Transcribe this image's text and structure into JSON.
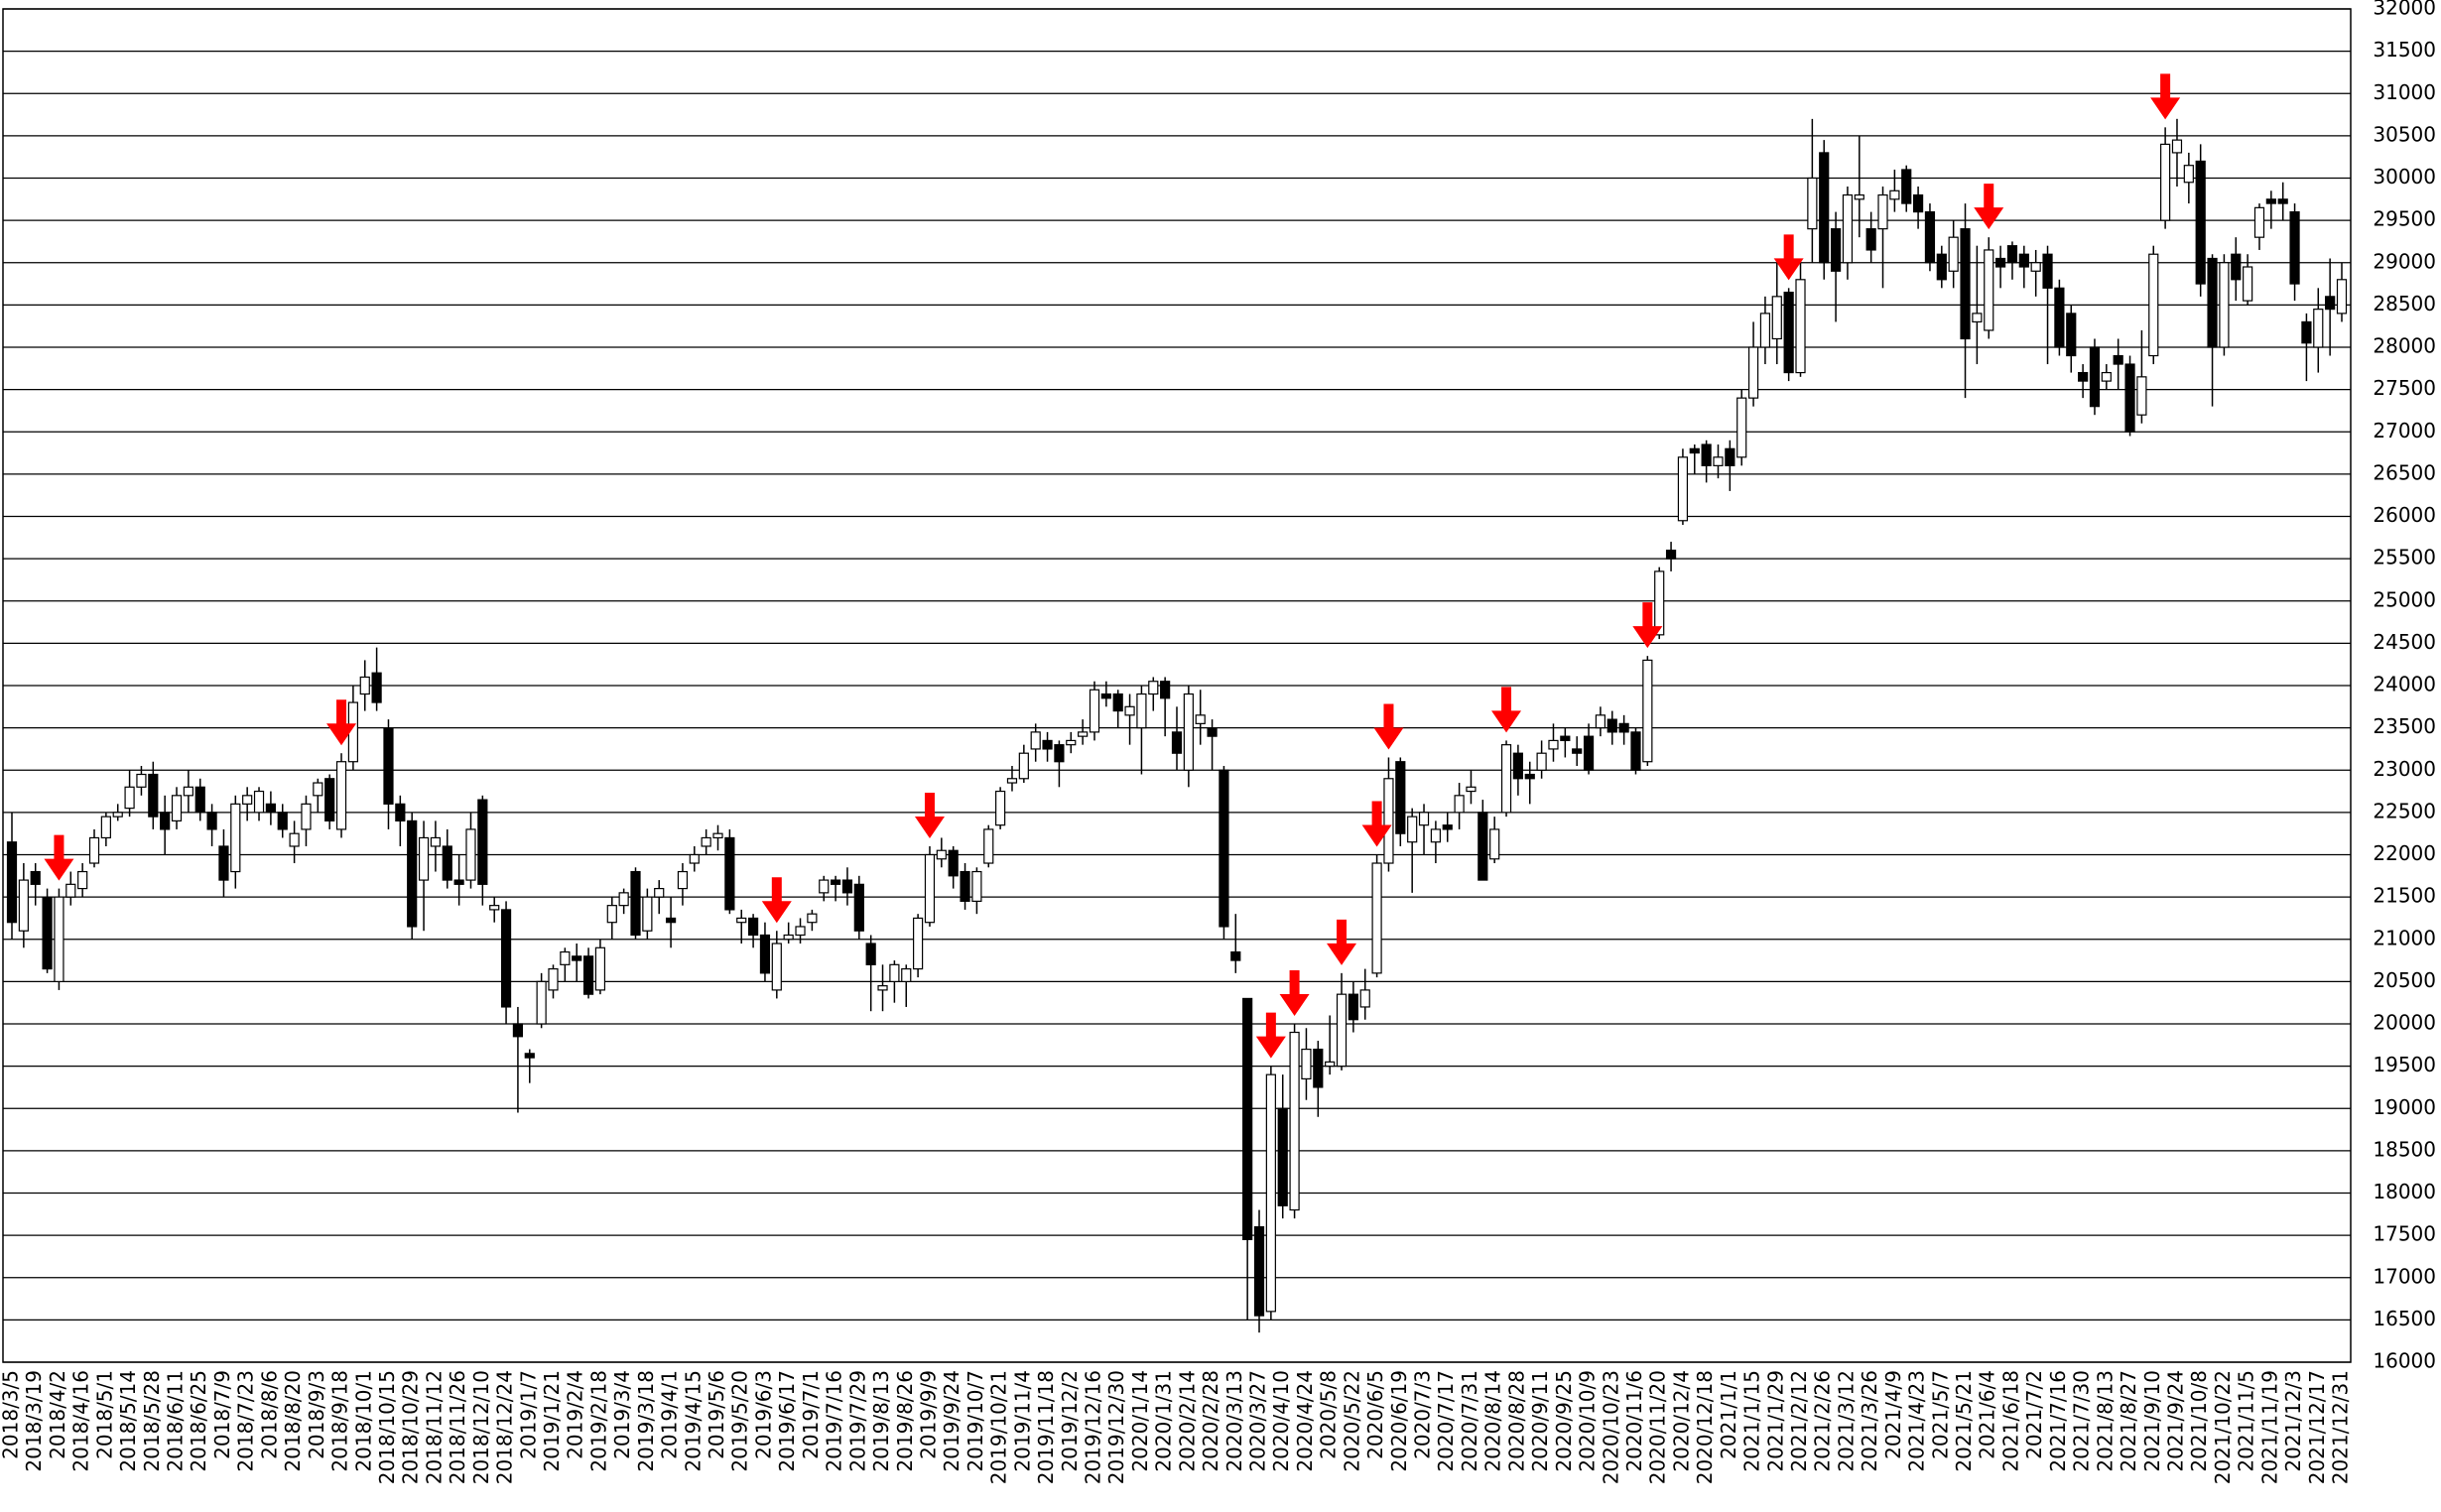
{
  "chart_data": {
    "type": "candlestick",
    "categories": [
      "2018/3/5",
      null,
      "2018/3/19",
      null,
      "2018/4/2",
      null,
      "2018/4/16",
      null,
      "2018/5/1",
      null,
      "2018/5/14",
      null,
      "2018/5/28",
      null,
      "2018/6/11",
      null,
      "2018/6/25",
      null,
      "2018/7/9",
      null,
      "2018/7/23",
      null,
      "2018/8/6",
      null,
      "2018/8/20",
      null,
      "2018/9/3",
      null,
      "2018/9/18",
      null,
      "2018/10/1",
      null,
      "2018/10/15",
      null,
      "2018/10/29",
      null,
      "2018/11/12",
      null,
      "2018/11/26",
      null,
      "2018/12/10",
      null,
      "2018/12/24",
      null,
      "2019/1/7",
      null,
      "2019/1/21",
      null,
      "2019/2/4",
      null,
      "2019/2/18",
      null,
      "2019/3/4",
      null,
      "2019/3/18",
      null,
      "2019/4/1",
      null,
      "2019/4/15",
      null,
      "2019/5/6",
      null,
      "2019/5/20",
      null,
      "2019/6/3",
      null,
      "2019/6/17",
      null,
      "2019/7/1",
      null,
      "2019/7/16",
      null,
      "2019/7/29",
      null,
      "2019/8/13",
      null,
      "2019/8/26",
      null,
      "2019/9/9",
      null,
      "2019/9/24",
      null,
      "2019/10/7",
      null,
      "2019/10/21",
      null,
      "2019/11/4",
      null,
      "2019/11/18",
      null,
      "2019/12/2",
      null,
      "2019/12/16",
      null,
      "2019/12/30",
      null,
      "2020/1/14",
      null,
      "2020/1/31",
      null,
      "2020/2/14",
      null,
      "2020/2/28",
      null,
      "2020/3/13",
      null,
      "2020/3/27",
      null,
      "2020/4/10",
      null,
      "2020/4/24",
      null,
      "2020/5/8",
      null,
      "2020/5/22",
      null,
      "2020/6/5",
      null,
      "2020/6/19",
      null,
      "2020/7/3",
      null,
      "2020/7/17",
      null,
      "2020/7/31",
      null,
      "2020/8/14",
      null,
      "2020/8/28",
      null,
      "2020/9/11",
      null,
      "2020/9/25",
      null,
      "2020/10/9",
      null,
      "2020/10/23",
      null,
      "2020/11/6",
      null,
      "2020/11/20",
      null,
      "2020/12/4",
      null,
      "2020/12/18",
      null,
      "2021/1/1",
      null,
      "2021/1/15",
      null,
      "2021/1/29",
      null,
      "2021/2/12",
      null,
      "2021/2/26",
      null,
      "2021/3/12",
      null,
      "2021/3/26",
      null,
      "2021/4/9",
      null,
      "2021/4/23",
      null,
      "2021/5/7",
      null,
      "2021/5/21",
      null,
      "2021/6/4",
      null,
      "2021/6/18",
      null,
      "2021/7/2",
      null,
      "2021/7/16",
      null,
      "2021/7/30",
      null,
      "2021/8/13",
      null,
      "2021/8/27",
      null,
      "2021/9/10",
      null,
      "2021/9/24",
      null,
      "2021/10/8",
      null,
      "2021/10/22",
      null,
      "2021/11/5",
      null,
      "2021/11/19",
      null,
      "2021/12/3",
      null,
      "2021/12/17",
      null,
      "2021/12/31"
    ],
    "candles": [
      [
        22150,
        22500,
        21000,
        21200
      ],
      [
        21100,
        21900,
        20900,
        21700
      ],
      [
        21800,
        21900,
        21400,
        21650
      ],
      [
        21500,
        21600,
        20600,
        20650
      ],
      [
        20500,
        21600,
        20400,
        21500
      ],
      [
        21500,
        21800,
        21400,
        21650
      ],
      [
        21600,
        21900,
        21500,
        21800
      ],
      [
        21900,
        22300,
        21850,
        22200
      ],
      [
        22200,
        22500,
        22100,
        22450
      ],
      [
        22450,
        22600,
        22400,
        22500
      ],
      [
        22550,
        23000,
        22450,
        22800
      ],
      [
        22800,
        23050,
        22700,
        22950
      ],
      [
        22950,
        23100,
        22300,
        22450
      ],
      [
        22500,
        22700,
        22000,
        22300
      ],
      [
        22400,
        22800,
        22300,
        22700
      ],
      [
        22700,
        23000,
        22500,
        22800
      ],
      [
        22800,
        22900,
        22400,
        22500
      ],
      [
        22500,
        22600,
        22100,
        22300
      ],
      [
        22100,
        22300,
        21500,
        21700
      ],
      [
        21800,
        22700,
        21600,
        22600
      ],
      [
        22600,
        22800,
        22400,
        22700
      ],
      [
        22500,
        22800,
        22400,
        22750
      ],
      [
        22600,
        22750,
        22350,
        22500
      ],
      [
        22500,
        22600,
        22200,
        22300
      ],
      [
        22100,
        22400,
        21900,
        22250
      ],
      [
        22300,
        22700,
        22100,
        22600
      ],
      [
        22700,
        22900,
        22500,
        22850
      ],
      [
        22900,
        22950,
        22300,
        22400
      ],
      [
        22300,
        23200,
        22200,
        23100
      ],
      [
        23100,
        24000,
        23000,
        23800
      ],
      [
        23900,
        24300,
        23700,
        24100
      ],
      [
        24150,
        24450,
        23700,
        23800
      ],
      [
        23500,
        23600,
        22300,
        22600
      ],
      [
        22600,
        22700,
        22100,
        22400
      ],
      [
        22400,
        22500,
        21000,
        21150
      ],
      [
        21700,
        22400,
        21100,
        22200
      ],
      [
        22100,
        22400,
        21800,
        22200
      ],
      [
        22100,
        22300,
        21600,
        21700
      ],
      [
        21700,
        22000,
        21400,
        21650
      ],
      [
        21700,
        22500,
        21600,
        22300
      ],
      [
        22650,
        22700,
        21400,
        21650
      ],
      [
        21350,
        21500,
        21200,
        21400
      ],
      [
        21350,
        21450,
        20000,
        20200
      ],
      [
        20000,
        20200,
        18950,
        19850
      ],
      [
        19650,
        19700,
        19300,
        19600
      ],
      [
        20000,
        20600,
        19950,
        20500
      ],
      [
        20400,
        20700,
        20300,
        20650
      ],
      [
        20700,
        20900,
        20500,
        20850
      ],
      [
        20800,
        20950,
        20500,
        20750
      ],
      [
        20800,
        20900,
        20300,
        20350
      ],
      [
        20400,
        21000,
        20350,
        20900
      ],
      [
        21200,
        21500,
        21000,
        21400
      ],
      [
        21400,
        21600,
        21300,
        21550
      ],
      [
        21800,
        21850,
        21000,
        21050
      ],
      [
        21100,
        21600,
        21000,
        21500
      ],
      [
        21500,
        21700,
        21300,
        21600
      ],
      [
        21250,
        21500,
        20900,
        21200
      ],
      [
        21600,
        21900,
        21400,
        21800
      ],
      [
        21900,
        22100,
        21800,
        22000
      ],
      [
        22100,
        22300,
        22000,
        22200
      ],
      [
        22200,
        22350,
        22050,
        22250
      ],
      [
        22200,
        22300,
        21300,
        21350
      ],
      [
        21200,
        21350,
        20950,
        21250
      ],
      [
        21250,
        21300,
        20900,
        21050
      ],
      [
        21050,
        21200,
        20500,
        20600
      ],
      [
        20400,
        21100,
        20300,
        20950
      ],
      [
        21000,
        21200,
        20950,
        21050
      ],
      [
        21050,
        21250,
        20950,
        21150
      ],
      [
        21200,
        21350,
        21100,
        21300
      ],
      [
        21550,
        21750,
        21450,
        21700
      ],
      [
        21700,
        21750,
        21450,
        21650
      ],
      [
        21700,
        21850,
        21400,
        21550
      ],
      [
        21650,
        21750,
        21000,
        21100
      ],
      [
        20950,
        21050,
        20150,
        20700
      ],
      [
        20400,
        20700,
        20150,
        20450
      ],
      [
        20500,
        20750,
        20250,
        20700
      ],
      [
        20500,
        20700,
        20200,
        20650
      ],
      [
        20650,
        21300,
        20550,
        21250
      ],
      [
        21200,
        22100,
        21150,
        22000
      ],
      [
        21950,
        22200,
        21850,
        22050
      ],
      [
        22050,
        22100,
        21600,
        21750
      ],
      [
        21800,
        21900,
        21350,
        21450
      ],
      [
        21450,
        21850,
        21300,
        21800
      ],
      [
        21900,
        22350,
        21850,
        22300
      ],
      [
        22350,
        22800,
        22300,
        22750
      ],
      [
        22850,
        23050,
        22750,
        22900
      ],
      [
        22900,
        23300,
        22850,
        23200
      ],
      [
        23250,
        23550,
        23100,
        23450
      ],
      [
        23350,
        23450,
        23100,
        23250
      ],
      [
        23300,
        23350,
        22800,
        23100
      ],
      [
        23300,
        23450,
        23200,
        23350
      ],
      [
        23400,
        23600,
        23300,
        23450
      ],
      [
        23450,
        24050,
        23350,
        23950
      ],
      [
        23900,
        24050,
        23750,
        23850
      ],
      [
        23900,
        23950,
        23500,
        23700
      ],
      [
        23650,
        23900,
        23300,
        23750
      ],
      [
        23500,
        24000,
        22950,
        23900
      ],
      [
        23900,
        24100,
        23700,
        24050
      ],
      [
        24050,
        24100,
        23400,
        23850
      ],
      [
        23450,
        23750,
        23000,
        23200
      ],
      [
        23000,
        24000,
        22800,
        23900
      ],
      [
        23550,
        23950,
        23300,
        23650
      ],
      [
        23500,
        23600,
        23000,
        23400
      ],
      [
        23000,
        23050,
        21000,
        21150
      ],
      [
        20850,
        21300,
        20600,
        20750
      ],
      [
        20300,
        20300,
        16500,
        17450
      ],
      [
        17600,
        17800,
        16350,
        16550
      ],
      [
        16600,
        19500,
        16500,
        19400
      ],
      [
        19000,
        19400,
        17700,
        17850
      ],
      [
        17800,
        20000,
        17700,
        19900
      ],
      [
        19350,
        19950,
        19100,
        19700
      ],
      [
        19700,
        19800,
        18900,
        19250
      ],
      [
        19500,
        20100,
        19400,
        19550
      ],
      [
        19500,
        20600,
        19450,
        20350
      ],
      [
        20350,
        20500,
        19900,
        20050
      ],
      [
        20200,
        20650,
        20050,
        20400
      ],
      [
        20600,
        22000,
        20550,
        21900
      ],
      [
        21900,
        23150,
        21800,
        22900
      ],
      [
        23100,
        23150,
        22100,
        22250
      ],
      [
        22150,
        22550,
        21550,
        22450
      ],
      [
        22350,
        22600,
        22000,
        22500
      ],
      [
        22150,
        22400,
        21900,
        22300
      ],
      [
        22350,
        22500,
        22150,
        22300
      ],
      [
        22500,
        22850,
        22300,
        22700
      ],
      [
        22750,
        23000,
        22600,
        22800
      ],
      [
        22500,
        22650,
        21700,
        21700
      ],
      [
        21950,
        22450,
        21900,
        22300
      ],
      [
        22500,
        23350,
        22450,
        23300
      ],
      [
        23200,
        23300,
        22700,
        22900
      ],
      [
        22950,
        23100,
        22600,
        22900
      ],
      [
        23000,
        23350,
        22900,
        23200
      ],
      [
        23250,
        23550,
        23100,
        23350
      ],
      [
        23400,
        23500,
        23150,
        23350
      ],
      [
        23250,
        23400,
        23050,
        23200
      ],
      [
        23400,
        23550,
        22950,
        23000
      ],
      [
        23500,
        23750,
        23400,
        23650
      ],
      [
        23600,
        23700,
        23300,
        23450
      ],
      [
        23550,
        23650,
        23300,
        23450
      ],
      [
        23450,
        23500,
        22950,
        23000
      ],
      [
        23100,
        24350,
        23050,
        24300
      ],
      [
        24600,
        25400,
        24550,
        25350
      ],
      [
        25600,
        25700,
        25350,
        25500
      ],
      [
        25950,
        26800,
        25900,
        26700
      ],
      [
        26800,
        26850,
        26500,
        26750
      ],
      [
        26850,
        26900,
        26400,
        26600
      ],
      [
        26600,
        26850,
        26450,
        26700
      ],
      [
        26800,
        26900,
        26300,
        26600
      ],
      [
        26700,
        27500,
        26600,
        27400
      ],
      [
        27400,
        28300,
        27300,
        28000
      ],
      [
        28000,
        28600,
        27800,
        28400
      ],
      [
        28100,
        29000,
        27800,
        28600
      ],
      [
        28650,
        28700,
        27600,
        27700
      ],
      [
        27700,
        29000,
        27650,
        28800
      ],
      [
        29400,
        30700,
        29000,
        30000
      ],
      [
        30300,
        30450,
        28800,
        29000
      ],
      [
        29400,
        29600,
        28300,
        28900
      ],
      [
        29000,
        29900,
        28800,
        29800
      ],
      [
        29750,
        30500,
        29300,
        29800
      ],
      [
        29400,
        29600,
        29000,
        29150
      ],
      [
        29400,
        29900,
        28700,
        29800
      ],
      [
        29750,
        30100,
        29600,
        29850
      ],
      [
        30100,
        30150,
        29600,
        29700
      ],
      [
        29800,
        29900,
        29400,
        29600
      ],
      [
        29600,
        29700,
        28900,
        29000
      ],
      [
        29100,
        29200,
        28700,
        28800
      ],
      [
        28900,
        29500,
        28700,
        29300
      ],
      [
        29400,
        29700,
        27400,
        28100
      ],
      [
        28300,
        29200,
        27800,
        28400
      ],
      [
        28200,
        29300,
        28100,
        29150
      ],
      [
        29050,
        29200,
        28700,
        28950
      ],
      [
        29200,
        29250,
        28800,
        29000
      ],
      [
        29100,
        29200,
        28700,
        28950
      ],
      [
        28900,
        29150,
        28600,
        29000
      ],
      [
        29100,
        29200,
        27800,
        28700
      ],
      [
        28700,
        28800,
        27900,
        28000
      ],
      [
        28400,
        28500,
        27700,
        27900
      ],
      [
        27700,
        27800,
        27400,
        27600
      ],
      [
        28000,
        28100,
        27200,
        27300
      ],
      [
        27600,
        27800,
        27500,
        27700
      ],
      [
        27900,
        28100,
        27500,
        27800
      ],
      [
        27800,
        27900,
        26950,
        27000
      ],
      [
        27200,
        28200,
        27100,
        27650
      ],
      [
        27900,
        29200,
        27800,
        29100
      ],
      [
        29500,
        30600,
        29400,
        30400
      ],
      [
        30300,
        30700,
        29900,
        30450
      ],
      [
        29950,
        30300,
        29700,
        30150
      ],
      [
        30200,
        30400,
        28600,
        28750
      ],
      [
        29050,
        29100,
        27300,
        28000
      ],
      [
        28000,
        29100,
        27900,
        29000
      ],
      [
        29100,
        29300,
        28550,
        28800
      ],
      [
        28550,
        29100,
        28500,
        28950
      ],
      [
        29300,
        29700,
        29150,
        29650
      ],
      [
        29750,
        29850,
        29400,
        29700
      ],
      [
        29750,
        29950,
        29500,
        29700
      ],
      [
        29600,
        29700,
        28550,
        28750
      ],
      [
        28300,
        28400,
        27600,
        28050
      ],
      [
        28000,
        28700,
        27700,
        28450
      ],
      [
        28600,
        29050,
        27900,
        28450
      ],
      [
        28400,
        29000,
        28300,
        28800
      ]
    ],
    "signals": [
      4,
      28,
      65,
      78,
      107,
      109,
      113,
      116,
      117,
      127,
      139,
      151,
      168,
      183
    ],
    "up_color": "#ffffff",
    "down_color": "#000000",
    "signal_color": "#ff0000",
    "ylim": [
      16000,
      32000
    ],
    "yticks": [
      16000,
      16500,
      17000,
      17500,
      18000,
      18500,
      19000,
      19500,
      20000,
      20500,
      21000,
      21500,
      22000,
      22500,
      23000,
      23500,
      24000,
      24500,
      25000,
      25500,
      26000,
      26500,
      27000,
      27500,
      28000,
      28500,
      29000,
      29500,
      30000,
      30500,
      31000,
      31500,
      32000
    ],
    "grid": true
  }
}
